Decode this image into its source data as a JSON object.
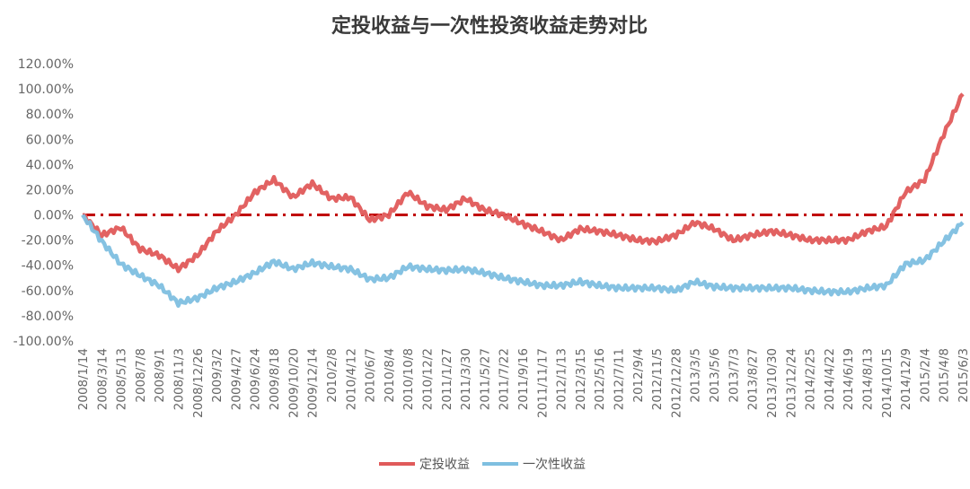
{
  "chart_data": {
    "type": "line",
    "title": "定投收益与一次性投资收益走势对比",
    "xlabel": "",
    "ylabel": "",
    "ylim": [
      -100,
      120
    ],
    "y_ticks": [
      "120.00%",
      "100.00%",
      "80.00%",
      "60.00%",
      "40.00%",
      "20.00%",
      "0.00%",
      "-20.00%",
      "-40.00%",
      "-60.00%",
      "-80.00%",
      "-100.00%"
    ],
    "y_tick_values": [
      120,
      100,
      80,
      60,
      40,
      20,
      0,
      -20,
      -40,
      -60,
      -80,
      -100
    ],
    "grid": false,
    "legend_position": "bottom",
    "reference_line": {
      "value": 0,
      "style": "dash-dot",
      "color": "#c00000"
    },
    "categories": [
      "2008/1/14",
      "2008/3/14",
      "2008/5/13",
      "2008/7/8",
      "2008/9/1",
      "2008/11/3",
      "2008/12/26",
      "2009/3/2",
      "2009/4/27",
      "2009/6/24",
      "2009/8/18",
      "2009/10/20",
      "2009/12/14",
      "2010/2/8",
      "2010/4/12",
      "2010/6/7",
      "2010/8/4",
      "2010/10/8",
      "2010/12/2",
      "2011/1/27",
      "2011/3/30",
      "2011/5/27",
      "2011/7/22",
      "2011/9/16",
      "2011/11/17",
      "2012/1/13",
      "2012/3/15",
      "2012/5/16",
      "2012/7/11",
      "2012/9/4",
      "2012/11/5",
      "2012/12/28",
      "2013/3/5",
      "2013/5/6",
      "2013/7/3",
      "2013/8/27",
      "2013/10/30",
      "2013/12/24",
      "2014/2/25",
      "2014/4/22",
      "2014/6/19",
      "2014/8/13",
      "2014/10/15",
      "2014/12/9",
      "2015/2/4",
      "2015/4/8",
      "2015/6/3"
    ],
    "series": [
      {
        "name": "定投收益",
        "color": "#e05a5a",
        "values": [
          0,
          -16,
          -10,
          -27,
          -32,
          -43,
          -32,
          -13,
          0,
          18,
          28,
          14,
          25,
          13,
          14,
          -4,
          0,
          18,
          7,
          4,
          13,
          4,
          0,
          -7,
          -13,
          -20,
          -11,
          -13,
          -16,
          -20,
          -21,
          -16,
          -6,
          -11,
          -20,
          -16,
          -13,
          -16,
          -20,
          -20,
          -20,
          -13,
          -9,
          18,
          28,
          64,
          96
        ]
      },
      {
        "name": "一次性收益",
        "color": "#7ebfe0",
        "values": [
          0,
          -21,
          -39,
          -48,
          -56,
          -70,
          -66,
          -58,
          -53,
          -46,
          -37,
          -43,
          -38,
          -41,
          -43,
          -51,
          -50,
          -41,
          -43,
          -44,
          -43,
          -46,
          -50,
          -53,
          -56,
          -56,
          -53,
          -56,
          -58,
          -58,
          -58,
          -60,
          -53,
          -57,
          -58,
          -58,
          -58,
          -58,
          -60,
          -61,
          -61,
          -58,
          -56,
          -39,
          -36,
          -21,
          -6
        ]
      }
    ]
  }
}
